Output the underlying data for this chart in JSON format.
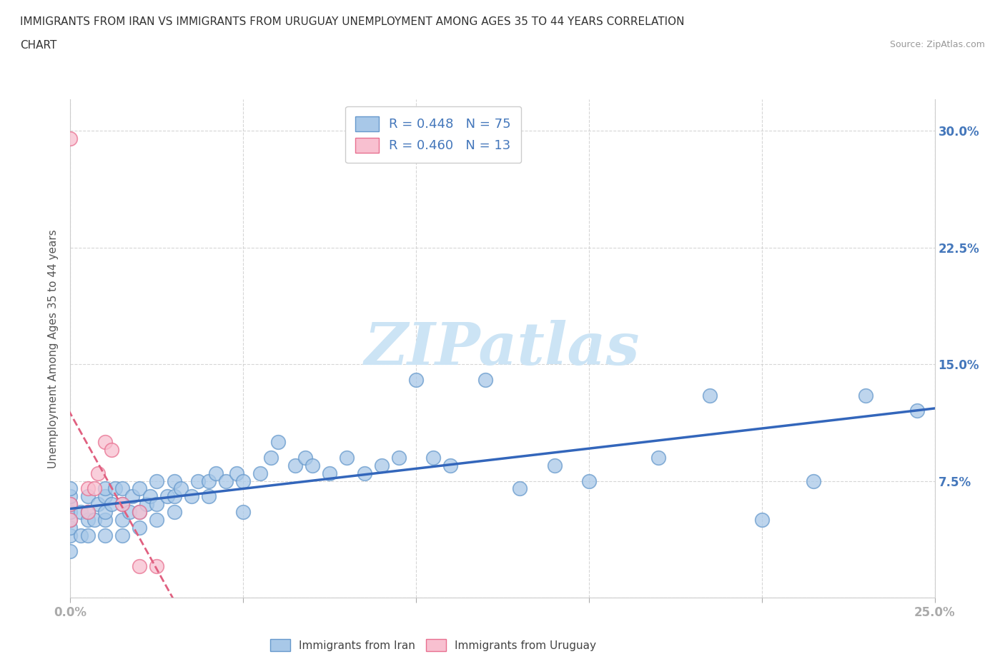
{
  "title_line1": "IMMIGRANTS FROM IRAN VS IMMIGRANTS FROM URUGUAY UNEMPLOYMENT AMONG AGES 35 TO 44 YEARS CORRELATION",
  "title_line2": "CHART",
  "source": "Source: ZipAtlas.com",
  "ylabel": "Unemployment Among Ages 35 to 44 years",
  "xlim": [
    0.0,
    0.25
  ],
  "ylim": [
    0.0,
    0.32
  ],
  "iran_R": 0.448,
  "iran_N": 75,
  "uruguay_R": 0.46,
  "uruguay_N": 13,
  "iran_color": "#a8c8e8",
  "iran_edge": "#6699cc",
  "uruguay_color": "#f8c0d0",
  "uruguay_edge": "#e87090",
  "trendline_iran_color": "#3366bb",
  "trendline_uruguay_color": "#e06080",
  "watermark_color": "#cce4f5",
  "iran_x": [
    0.0,
    0.0,
    0.0,
    0.0,
    0.0,
    0.0,
    0.0,
    0.0,
    0.003,
    0.003,
    0.005,
    0.005,
    0.005,
    0.005,
    0.007,
    0.008,
    0.01,
    0.01,
    0.01,
    0.01,
    0.01,
    0.012,
    0.013,
    0.015,
    0.015,
    0.015,
    0.015,
    0.017,
    0.018,
    0.02,
    0.02,
    0.02,
    0.022,
    0.023,
    0.025,
    0.025,
    0.025,
    0.028,
    0.03,
    0.03,
    0.03,
    0.032,
    0.035,
    0.037,
    0.04,
    0.04,
    0.042,
    0.045,
    0.048,
    0.05,
    0.05,
    0.055,
    0.058,
    0.06,
    0.065,
    0.068,
    0.07,
    0.075,
    0.08,
    0.085,
    0.09,
    0.095,
    0.1,
    0.105,
    0.11,
    0.12,
    0.13,
    0.14,
    0.15,
    0.17,
    0.185,
    0.2,
    0.215,
    0.23,
    0.245
  ],
  "iran_y": [
    0.03,
    0.04,
    0.045,
    0.05,
    0.055,
    0.06,
    0.065,
    0.07,
    0.04,
    0.055,
    0.04,
    0.05,
    0.055,
    0.065,
    0.05,
    0.06,
    0.04,
    0.05,
    0.055,
    0.065,
    0.07,
    0.06,
    0.07,
    0.04,
    0.05,
    0.06,
    0.07,
    0.055,
    0.065,
    0.045,
    0.055,
    0.07,
    0.06,
    0.065,
    0.05,
    0.06,
    0.075,
    0.065,
    0.055,
    0.065,
    0.075,
    0.07,
    0.065,
    0.075,
    0.065,
    0.075,
    0.08,
    0.075,
    0.08,
    0.055,
    0.075,
    0.08,
    0.09,
    0.1,
    0.085,
    0.09,
    0.085,
    0.08,
    0.09,
    0.08,
    0.085,
    0.09,
    0.14,
    0.09,
    0.085,
    0.14,
    0.07,
    0.085,
    0.075,
    0.09,
    0.13,
    0.05,
    0.075,
    0.13,
    0.12
  ],
  "uruguay_x": [
    0.0,
    0.0,
    0.0,
    0.005,
    0.005,
    0.007,
    0.008,
    0.01,
    0.012,
    0.015,
    0.02,
    0.02,
    0.025
  ],
  "uruguay_y": [
    0.05,
    0.06,
    0.295,
    0.055,
    0.07,
    0.07,
    0.08,
    0.1,
    0.095,
    0.06,
    0.055,
    0.02,
    0.02
  ]
}
